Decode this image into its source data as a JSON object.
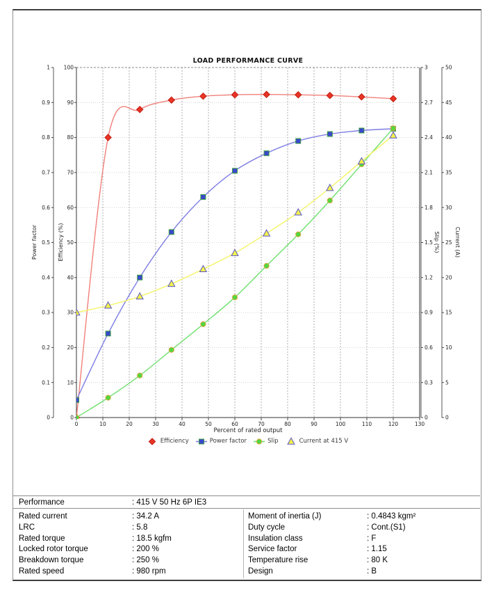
{
  "chart_data": {
    "type": "line",
    "title": "LOAD PERFORMANCE CURVE",
    "xlabel": "Percent of rated output",
    "x_range": [
      0,
      130
    ],
    "x_tick_step": 10,
    "grid": true,
    "legend_position": "bottom",
    "x": [
      0,
      12,
      24,
      36,
      48,
      60,
      72,
      84,
      96,
      108,
      120
    ],
    "series": [
      {
        "name": "Efficiency",
        "axis": "eff",
        "marker": "diamond",
        "line_color": "#f0807a",
        "fill": "#e93425",
        "edge": "#c01d12",
        "values": [
          0,
          80,
          88,
          90.7,
          91.8,
          92.2,
          92.3,
          92.2,
          92.0,
          91.6,
          91.1
        ]
      },
      {
        "name": "Power factor",
        "axis": "pf",
        "marker": "square",
        "line_color": "#7d7de4",
        "fill": "#3a48cf",
        "edge": "#3d9e3d",
        "values": [
          0.05,
          0.24,
          0.4,
          0.53,
          0.63,
          0.705,
          0.755,
          0.79,
          0.81,
          0.82,
          0.825
        ]
      },
      {
        "name": "Slip",
        "axis": "slip",
        "marker": "circle",
        "line_color": "#70e070",
        "fill": "#50d93e",
        "edge": "#e0a23e",
        "values": [
          0,
          0.17,
          0.36,
          0.58,
          0.8,
          1.03,
          1.3,
          1.57,
          1.86,
          2.17,
          2.48
        ]
      },
      {
        "name": "Current at 415 V",
        "axis": "cur",
        "marker": "triangle",
        "line_color": "#f4f464",
        "fill": "#f2f24b",
        "edge": "#5a55c8",
        "values": [
          15,
          16,
          17.3,
          19.1,
          21.2,
          23.5,
          26.3,
          29.3,
          32.8,
          36.6,
          40.3
        ]
      }
    ],
    "axes": {
      "pf": {
        "label": "Power factor",
        "min": 0,
        "max": 1,
        "step": 0.1
      },
      "eff": {
        "label": "Efficiency (%)",
        "min": 0,
        "max": 100,
        "step": 10
      },
      "slip": {
        "label": "Slip (%)",
        "min": 0,
        "max": 3,
        "step": 0.3
      },
      "cur": {
        "label": "Current (A)",
        "min": 0,
        "max": 50,
        "step": 5
      }
    }
  },
  "spec_table": {
    "performance": {
      "label": "Performance",
      "value": ": 415 V 50 Hz 6P IE3"
    },
    "left_rows": [
      {
        "label": "Rated current",
        "value": ": 34.2 A"
      },
      {
        "label": "LRC",
        "value": ": 5.8"
      },
      {
        "label": "Rated torque",
        "value": ": 18.5 kgfm"
      },
      {
        "label": "Locked rotor torque",
        "value": ": 200 %"
      },
      {
        "label": "Breakdown torque",
        "value": ": 250 %"
      },
      {
        "label": "Rated speed",
        "value": ": 980 rpm"
      }
    ],
    "right_rows": [
      {
        "label": "Moment of inertia (J)",
        "value": ": 0.4843 kgm²"
      },
      {
        "label": "Duty cycle",
        "value": ": Cont.(S1)"
      },
      {
        "label": "Insulation class",
        "value": ": F"
      },
      {
        "label": "Service factor",
        "value": ": 1.15"
      },
      {
        "label": "Temperature rise",
        "value": ": 80 K"
      },
      {
        "label": "Design",
        "value": ": B"
      }
    ]
  }
}
